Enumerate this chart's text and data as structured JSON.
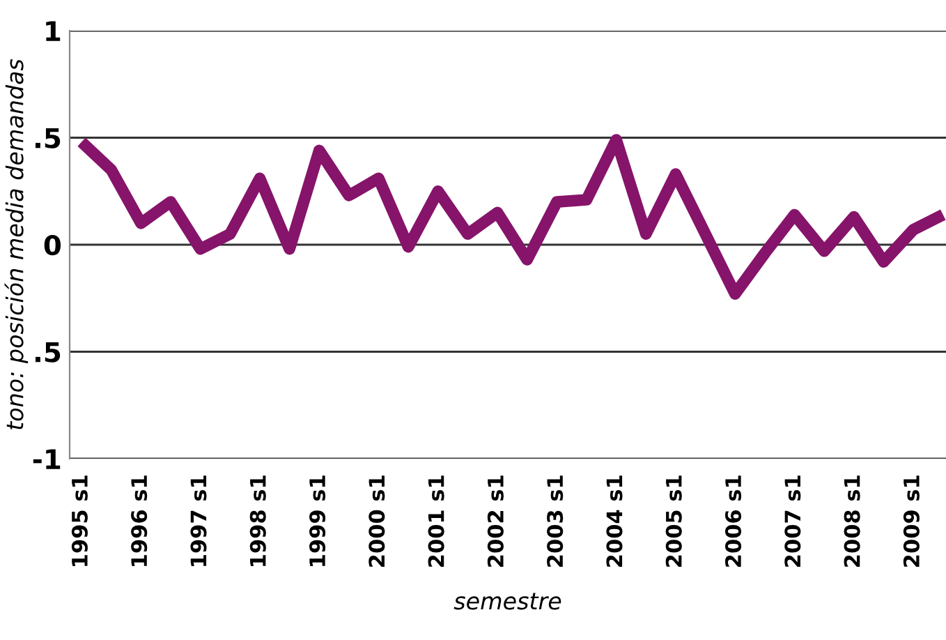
{
  "chart_data": {
    "type": "line",
    "xlabel": "semestre",
    "ylabel": "tono: posición media demandas",
    "categories": [
      "1995 s1",
      null,
      "1996 s1",
      null,
      "1997 s1",
      null,
      "1998 s1",
      null,
      "1999 s1",
      null,
      "2000 s1",
      null,
      "2001 s1",
      null,
      "2002 s1",
      null,
      "2003 s1",
      null,
      "2004 s1",
      null,
      "2005 s1",
      null,
      "2006 s1",
      null,
      "2007 s1",
      null,
      "2008 s1",
      null,
      "2009 s1",
      null
    ],
    "series": [
      {
        "color": "#86146a",
        "values": [
          0.48,
          0.35,
          0.1,
          0.2,
          -0.02,
          0.05,
          0.31,
          -0.02,
          0.44,
          0.23,
          0.31,
          -0.01,
          0.25,
          0.05,
          0.15,
          -0.07,
          0.2,
          0.21,
          0.49,
          0.05,
          0.33,
          0.05,
          -0.23,
          -0.04,
          0.14,
          -0.03,
          0.13,
          -0.08,
          0.07,
          0.14
        ]
      }
    ],
    "ylim": [
      -1,
      1
    ],
    "yticks": [
      -1,
      {
        "value": -0.5,
        "label": ".5"
      },
      0,
      {
        "value": 0.5,
        "label": ".5"
      },
      1
    ],
    "grid": "y",
    "legend": false,
    "marker": "none",
    "line_style": "solid"
  }
}
